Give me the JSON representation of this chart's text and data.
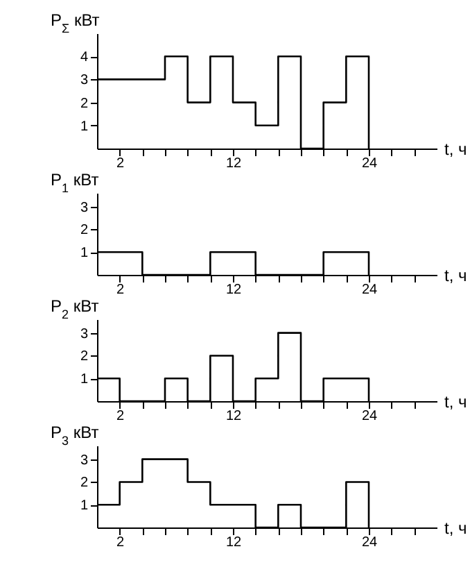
{
  "chart_data": [
    {
      "type": "step",
      "ylabel": "P$_{Σ}$ кВт",
      "xlabel": "t, ч",
      "x": [
        0,
        2,
        4,
        6,
        8,
        10,
        12,
        14,
        16,
        18,
        20,
        22,
        24
      ],
      "values": [
        3,
        3,
        3,
        4,
        2,
        4,
        2,
        1,
        4,
        0,
        2,
        4,
        0
      ],
      "color": "#000000",
      "xlim": [
        0,
        30
      ],
      "ylim": [
        0,
        5
      ],
      "yticks": [
        1,
        2,
        3,
        4
      ],
      "xticks": [
        {
          "value": 2,
          "label": "2"
        },
        {
          "value": 4,
          "label": null
        },
        {
          "value": 6,
          "label": null
        },
        {
          "value": 8,
          "label": null
        },
        {
          "value": 10,
          "label": null
        },
        {
          "value": 12,
          "label": "12"
        },
        {
          "value": 14,
          "label": null
        },
        {
          "value": 16,
          "label": null
        },
        {
          "value": 18,
          "label": null
        },
        {
          "value": 20,
          "label": null
        },
        {
          "value": 22,
          "label": null
        },
        {
          "value": 24,
          "label": "24"
        },
        {
          "value": 26,
          "label": null
        },
        {
          "value": 28,
          "label": null
        }
      ],
      "grid": false,
      "marker": "none"
    },
    {
      "type": "step",
      "ylabel": "P$_{1}$ кВт",
      "xlabel": "t, ч",
      "x": [
        0,
        2,
        4,
        6,
        8,
        10,
        12,
        14,
        16,
        18,
        20,
        22,
        24
      ],
      "values": [
        1,
        1,
        0,
        0,
        0,
        1,
        1,
        0,
        0,
        0,
        1,
        1,
        0
      ],
      "color": "#000000",
      "xlim": [
        0,
        30
      ],
      "ylim": [
        0,
        3.6
      ],
      "yticks": [
        1,
        2,
        3
      ],
      "xticks": [
        {
          "value": 2,
          "label": "2"
        },
        {
          "value": 4,
          "label": null
        },
        {
          "value": 6,
          "label": null
        },
        {
          "value": 8,
          "label": null
        },
        {
          "value": 10,
          "label": null
        },
        {
          "value": 12,
          "label": "12"
        },
        {
          "value": 14,
          "label": null
        },
        {
          "value": 16,
          "label": null
        },
        {
          "value": 18,
          "label": null
        },
        {
          "value": 20,
          "label": null
        },
        {
          "value": 22,
          "label": null
        },
        {
          "value": 24,
          "label": "24"
        },
        {
          "value": 26,
          "label": null
        },
        {
          "value": 28,
          "label": null
        }
      ],
      "grid": false,
      "marker": "none"
    },
    {
      "type": "step",
      "ylabel": "P$_{2}$ кВт",
      "xlabel": "t, ч",
      "x": [
        0,
        2,
        4,
        6,
        8,
        10,
        12,
        14,
        16,
        18,
        20,
        22,
        24
      ],
      "values": [
        1,
        0,
        0,
        1,
        0,
        2,
        0,
        1,
        3,
        0,
        1,
        1,
        0
      ],
      "color": "#000000",
      "xlim": [
        0,
        30
      ],
      "ylim": [
        0,
        3.6
      ],
      "yticks": [
        1,
        2,
        3
      ],
      "xticks": [
        {
          "value": 2,
          "label": "2"
        },
        {
          "value": 4,
          "label": null
        },
        {
          "value": 6,
          "label": null
        },
        {
          "value": 8,
          "label": null
        },
        {
          "value": 10,
          "label": null
        },
        {
          "value": 12,
          "label": "12"
        },
        {
          "value": 14,
          "label": null
        },
        {
          "value": 16,
          "label": null
        },
        {
          "value": 18,
          "label": null
        },
        {
          "value": 20,
          "label": null
        },
        {
          "value": 22,
          "label": null
        },
        {
          "value": 24,
          "label": "24"
        },
        {
          "value": 26,
          "label": null
        },
        {
          "value": 28,
          "label": null
        }
      ],
      "grid": false,
      "marker": "none"
    },
    {
      "type": "step",
      "ylabel": "P$_{3}$ кВт",
      "xlabel": "t, ч",
      "x": [
        0,
        2,
        4,
        6,
        8,
        10,
        12,
        14,
        16,
        18,
        20,
        22,
        24
      ],
      "values": [
        1,
        2,
        3,
        3,
        2,
        1,
        1,
        0,
        1,
        0,
        0,
        2,
        0
      ],
      "color": "#000000",
      "xlim": [
        0,
        30
      ],
      "ylim": [
        0,
        3.6
      ],
      "yticks": [
        1,
        2,
        3
      ],
      "xticks": [
        {
          "value": 2,
          "label": "2"
        },
        {
          "value": 4,
          "label": null
        },
        {
          "value": 6,
          "label": null
        },
        {
          "value": 8,
          "label": null
        },
        {
          "value": 10,
          "label": null
        },
        {
          "value": 12,
          "label": "12"
        },
        {
          "value": 14,
          "label": null
        },
        {
          "value": 16,
          "label": null
        },
        {
          "value": 18,
          "label": null
        },
        {
          "value": 20,
          "label": null
        },
        {
          "value": 22,
          "label": null
        },
        {
          "value": 24,
          "label": "24"
        },
        {
          "value": 26,
          "label": null
        },
        {
          "value": 28,
          "label": null
        }
      ],
      "grid": false,
      "marker": "none"
    }
  ]
}
